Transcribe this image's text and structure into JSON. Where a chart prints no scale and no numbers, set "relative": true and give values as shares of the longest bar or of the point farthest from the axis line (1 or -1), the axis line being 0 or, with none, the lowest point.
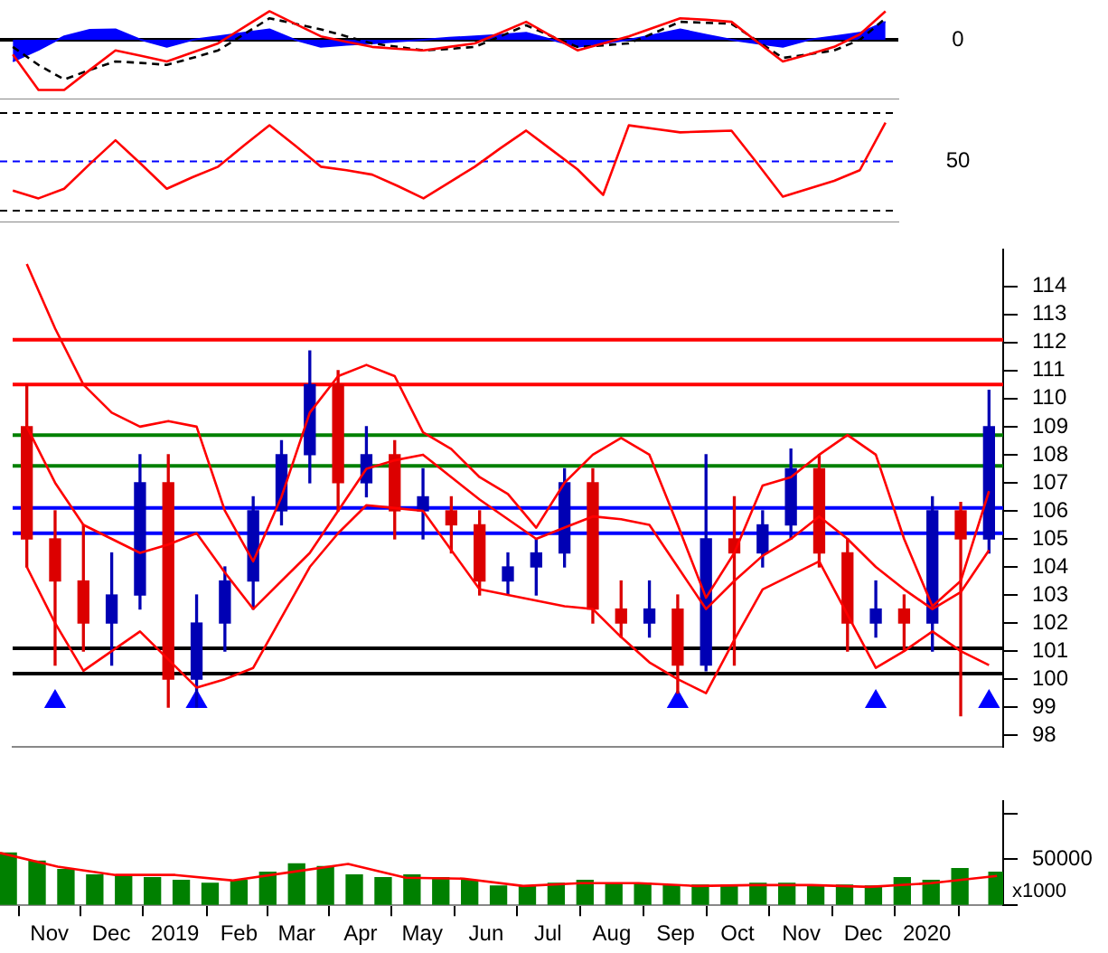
{
  "chart_data": [
    {
      "type": "line",
      "categories": [
        null,
        null,
        null,
        null,
        null,
        null,
        null,
        null,
        null,
        null,
        null,
        null,
        null,
        null,
        null,
        null,
        null,
        null,
        null,
        null,
        null,
        null,
        null,
        null,
        null,
        null,
        null,
        null,
        null,
        null,
        null,
        null,
        null,
        null,
        null
      ],
      "relative": true,
      "tick_labels": false,
      "marker": "none",
      "annotations": [
        "0"
      ],
      "ref_lines": [
        {
          "axis": "y",
          "value": 0,
          "color": "#000000"
        }
      ],
      "series": [
        {
          "type": "area",
          "color": "#0000ff",
          "values": [
            -0.43,
            -0.2,
            0.07,
            0.2,
            0.21,
            0,
            -0.14,
            0,
            0.07,
            0.14,
            0.21,
            0,
            -0.14,
            -0.1,
            -0.07,
            -0.03,
            0,
            0.04,
            0.07,
            0.1,
            0.14,
            0,
            -0.14,
            -0.07,
            0,
            0.1,
            0.21,
            0.1,
            0,
            -0.07,
            -0.14,
            0,
            0.07,
            0.14,
            0.36
          ]
        },
        {
          "color": "#ff0000",
          "values": [
            -0.29,
            -1,
            -1,
            -0.6,
            -0.21,
            -0.32,
            -0.43,
            -0.25,
            -0.07,
            0.25,
            0.57,
            0.32,
            0.07,
            -0.04,
            -0.14,
            -0.18,
            -0.21,
            -0.14,
            -0.07,
            0.14,
            0.36,
            0.07,
            -0.21,
            -0.07,
            0.07,
            0.25,
            0.43,
            0.4,
            0.36,
            -0.04,
            -0.43,
            -0.29,
            -0.14,
            0.11,
            0.57
          ]
        },
        {
          "color": "#000000",
          "line_style": "dashed",
          "values": [
            -0.14,
            -0.5,
            -0.79,
            -0.6,
            -0.43,
            -0.46,
            -0.5,
            -0.36,
            -0.21,
            0.11,
            0.43,
            0.32,
            0.21,
            0.07,
            -0.07,
            -0.14,
            -0.21,
            -0.18,
            -0.14,
            0.07,
            0.29,
            0.07,
            -0.14,
            -0.11,
            -0.07,
            0.14,
            0.36,
            0.34,
            0.32,
            -0.02,
            -0.36,
            -0.29,
            -0.21,
            0,
            0.43
          ]
        }
      ]
    },
    {
      "type": "line",
      "categories": [
        null,
        null,
        null,
        null,
        null,
        null,
        null,
        null,
        null,
        null,
        null,
        null,
        null,
        null,
        null,
        null,
        null,
        null,
        null,
        null,
        null,
        null,
        null,
        null,
        null,
        null,
        null,
        null,
        null,
        null,
        null,
        null,
        null,
        null,
        null
      ],
      "relative": true,
      "tick_labels": false,
      "marker": "none",
      "annotations": [
        "50"
      ],
      "ref_lines": [
        {
          "axis": "y",
          "value": 1.11,
          "color": "#000000",
          "line_style": "dashed"
        },
        {
          "axis": "y",
          "value": 0.56,
          "color": "#0000ff",
          "line_style": "dashed"
        },
        {
          "axis": "y",
          "value": 0,
          "color": "#000000",
          "line_style": "dashed"
        }
      ],
      "series": [
        {
          "color": "#ff0000",
          "values": [
            0.23,
            0.14,
            0.25,
            0.53,
            0.8,
            0.53,
            0.25,
            0.38,
            0.5,
            0.74,
            0.97,
            0.74,
            0.5,
            0.46,
            0.41,
            0.28,
            0.14,
            0.32,
            0.5,
            0.71,
            0.91,
            0.69,
            0.47,
            0.18,
            0.97,
            0.93,
            0.89,
            0.9,
            0.91,
            0.54,
            0.16,
            0.25,
            0.34,
            0.46,
            1
          ]
        }
      ]
    },
    {
      "type": "candlestick",
      "categories": [
        null,
        null,
        null,
        null,
        null,
        null,
        null,
        null,
        null,
        null,
        null,
        null,
        null,
        null,
        null,
        null,
        null,
        null,
        null,
        null,
        null,
        null,
        null,
        null,
        null,
        null,
        null,
        null,
        null,
        null,
        null,
        null,
        null,
        null,
        null
      ],
      "ohlc": [
        [
          109,
          110.5,
          104,
          105
        ],
        [
          105,
          106,
          100.5,
          103.5
        ],
        [
          103.5,
          105.5,
          101,
          102
        ],
        [
          102,
          104.5,
          100.5,
          103
        ],
        [
          103,
          108,
          102.5,
          107
        ],
        [
          107,
          108,
          99,
          100
        ],
        [
          100,
          103,
          99,
          102
        ],
        [
          102,
          104,
          101,
          103.5
        ],
        [
          103.5,
          106.5,
          102.5,
          106
        ],
        [
          106,
          108.5,
          105.5,
          108
        ],
        [
          108,
          111.7,
          107,
          110.5
        ],
        [
          110.5,
          111,
          106,
          107
        ],
        [
          107,
          109,
          106.5,
          108
        ],
        [
          108,
          108.5,
          105,
          106
        ],
        [
          106,
          107.5,
          105,
          106.5
        ],
        [
          106,
          106.5,
          104.5,
          105.5
        ],
        [
          105.5,
          106,
          103,
          103.5
        ],
        [
          103.5,
          104.5,
          103,
          104
        ],
        [
          104,
          105,
          103,
          104.5
        ],
        [
          104.5,
          107.5,
          104,
          107
        ],
        [
          107,
          107.5,
          102,
          102.5
        ],
        [
          102.5,
          103.5,
          101.5,
          102
        ],
        [
          102,
          103.5,
          101.5,
          102.5
        ],
        [
          102.5,
          103,
          99.5,
          100.5
        ],
        [
          100.5,
          108,
          100.3,
          105
        ],
        [
          105,
          106.5,
          100.5,
          104.5
        ],
        [
          104.5,
          106,
          104,
          105.5
        ],
        [
          105.5,
          108.2,
          105,
          107.5
        ],
        [
          107.5,
          108,
          104,
          104.5
        ],
        [
          104.5,
          105,
          101,
          102
        ],
        [
          102,
          103.5,
          101.5,
          102.5
        ],
        [
          102.5,
          103,
          101,
          102
        ],
        [
          102,
          106.5,
          101,
          106
        ],
        [
          106,
          106.3,
          98.7,
          105
        ],
        [
          105,
          110.3,
          104.5,
          109
        ]
      ],
      "colors": [
        "#dc0000",
        "#dc0000",
        "#dc0000",
        "#0000b4",
        "#0000b4",
        "#dc0000",
        "#0000b4",
        "#0000b4",
        "#0000b4",
        "#0000b4",
        "#0000b4",
        "#dc0000",
        "#0000b4",
        "#dc0000",
        "#0000b4",
        "#dc0000",
        "#dc0000",
        "#0000b4",
        "#0000b4",
        "#0000b4",
        "#dc0000",
        "#dc0000",
        "#0000b4",
        "#dc0000",
        "#0000b4",
        "#dc0000",
        "#0000b4",
        "#0000b4",
        "#dc0000",
        "#dc0000",
        "#0000b4",
        "#dc0000",
        "#0000b4",
        "#dc0000",
        "#0000b4"
      ],
      "ylim": [
        97.6,
        115.3
      ],
      "yticks": [
        98,
        99,
        100,
        101,
        102,
        103,
        104,
        105,
        106,
        107,
        108,
        109,
        110,
        111,
        112,
        113,
        114
      ],
      "tick_labels": "y",
      "marker": "none",
      "ref_lines": [
        {
          "axis": "y",
          "value": 112.1,
          "color": "#ff0000"
        },
        {
          "axis": "y",
          "value": 110.5,
          "color": "#ff0000"
        },
        {
          "axis": "y",
          "value": 108.7,
          "color": "#008000"
        },
        {
          "axis": "y",
          "value": 107.6,
          "color": "#008000"
        },
        {
          "axis": "y",
          "value": 106.1,
          "color": "#0000ff"
        },
        {
          "axis": "y",
          "value": 105.2,
          "color": "#0000ff"
        },
        {
          "axis": "y",
          "value": 101.1,
          "color": "#000000"
        },
        {
          "axis": "y",
          "value": 100.2,
          "color": "#000000"
        }
      ],
      "series": [
        {
          "type": "line",
          "color": "#ff0000",
          "values": [
            114.8,
            112.5,
            110.5,
            109.5,
            109,
            109.2,
            109,
            106,
            104.2,
            106.5,
            109.5,
            110.8,
            111.2,
            110.8,
            108.8,
            108.2,
            107.2,
            106.6,
            105.4,
            107,
            108,
            108.6,
            108,
            105.5,
            102.9,
            104.5,
            106.9,
            107.2,
            108,
            108.7,
            108,
            105,
            102.6,
            103.5,
            106.7
          ]
        },
        {
          "type": "line",
          "color": "#ff0000",
          "values": [
            109,
            107,
            105.5,
            105,
            104.5,
            104.8,
            105.2,
            103.8,
            102.5,
            103.5,
            104.5,
            106,
            107.5,
            107.8,
            108,
            107.2,
            106.4,
            105.7,
            105,
            105.4,
            105.8,
            105.7,
            105.5,
            104,
            102.5,
            103.5,
            104.4,
            105,
            105.8,
            105,
            104,
            103.2,
            102.5,
            103.1,
            104.6
          ]
        },
        {
          "type": "line",
          "color": "#ff0000",
          "values": [
            104,
            102,
            100.3,
            101,
            101.7,
            100.7,
            99.7,
            100,
            100.4,
            102.2,
            104,
            105.2,
            106.2,
            106.1,
            106,
            104.6,
            103.2,
            103,
            102.8,
            102.6,
            102.5,
            101.5,
            100.6,
            100,
            99.5,
            101.4,
            103.2,
            103.7,
            104.2,
            102.3,
            100.4,
            101,
            101.7,
            101,
            100.5
          ]
        },
        {
          "type": "scatter",
          "color": "#0000ff",
          "marker": "triangle",
          "values": [
            null,
            99.2,
            null,
            null,
            null,
            null,
            99.2,
            null,
            null,
            null,
            null,
            null,
            null,
            null,
            null,
            null,
            null,
            null,
            null,
            null,
            null,
            null,
            null,
            99.2,
            null,
            null,
            null,
            null,
            null,
            null,
            99.2,
            null,
            null,
            null,
            99.2
          ]
        }
      ]
    },
    {
      "type": "bar",
      "x": [
        "2018-10-12",
        "2018-10-26",
        "2018-11-09",
        "2018-11-23",
        "2018-12-07",
        "2018-12-21",
        "2019-01-04",
        "2019-01-18",
        "2019-02-01",
        "2019-02-15",
        "2019-03-01",
        "2019-03-15",
        "2019-03-29",
        "2019-04-12",
        "2019-04-26",
        "2019-05-10",
        "2019-05-24",
        "2019-06-07",
        "2019-06-21",
        "2019-07-05",
        "2019-07-19",
        "2019-08-02",
        "2019-08-16",
        "2019-08-30",
        "2019-09-13",
        "2019-09-27",
        "2019-10-11",
        "2019-10-25",
        "2019-11-08",
        "2019-11-22",
        "2019-12-06",
        "2019-12-20",
        "2020-01-03",
        "2020-01-17",
        "2020-02-04"
      ],
      "xlim": [
        "2018-10-08",
        "2020-02-07"
      ],
      "xticks": [
        {
          "value": "2018-11-01",
          "label": "Nov"
        },
        {
          "value": "2018-12-01",
          "label": "Dec"
        },
        {
          "value": "2019-01-01",
          "label": "2019"
        },
        {
          "value": "2019-02-01",
          "label": "Feb"
        },
        {
          "value": "2019-03-01",
          "label": "Mar"
        },
        {
          "value": "2019-04-01",
          "label": "Apr"
        },
        {
          "value": "2019-05-01",
          "label": "May"
        },
        {
          "value": "2019-06-01",
          "label": "Jun"
        },
        {
          "value": "2019-07-01",
          "label": "Jul"
        },
        {
          "value": "2019-08-01",
          "label": "Aug"
        },
        {
          "value": "2019-09-01",
          "label": "Sep"
        },
        {
          "value": "2019-10-01",
          "label": "Oct"
        },
        {
          "value": "2019-11-01",
          "label": "Nov"
        },
        {
          "value": "2019-12-01",
          "label": "Dec"
        },
        {
          "value": "2020-01-01",
          "label": "2020"
        }
      ],
      "ylim": [
        0,
        113000
      ],
      "yticks": [
        {
          "value": 0,
          "label": null
        },
        50000,
        {
          "value": 100000,
          "label": null
        }
      ],
      "marker": "none",
      "annotations": [
        "x1000"
      ],
      "series": [
        {
          "type": "bar",
          "color": "#008000",
          "values": [
            57000,
            48000,
            39000,
            33000,
            33000,
            30000,
            27000,
            24000,
            27000,
            36000,
            45000,
            42000,
            33000,
            30000,
            33000,
            30000,
            27000,
            21000,
            21000,
            24000,
            27000,
            24000,
            24000,
            22000,
            22000,
            22000,
            24000,
            24000,
            22000,
            22000,
            21000,
            30000,
            27000,
            40000,
            36000
          ]
        },
        {
          "type": "line",
          "color": "#ff0000",
          "x": [
            "2018-10-08",
            "2018-11-05",
            "2018-12-03",
            "2019-01-01",
            "2019-01-29",
            "2019-02-26",
            "2019-03-26",
            "2019-04-23",
            "2019-05-21",
            "2019-06-19",
            "2019-07-17",
            "2019-08-14",
            "2019-09-11",
            "2019-10-09",
            "2019-11-06",
            "2019-12-04",
            "2020-01-03",
            "2020-01-27",
            "2020-02-04"
          ],
          "values": [
            57000,
            42000,
            33000,
            33000,
            27000,
            36000,
            45000,
            30000,
            29000,
            21000,
            24000,
            24000,
            21000,
            22000,
            22000,
            20000,
            24000,
            30000,
            32000
          ]
        }
      ]
    }
  ]
}
